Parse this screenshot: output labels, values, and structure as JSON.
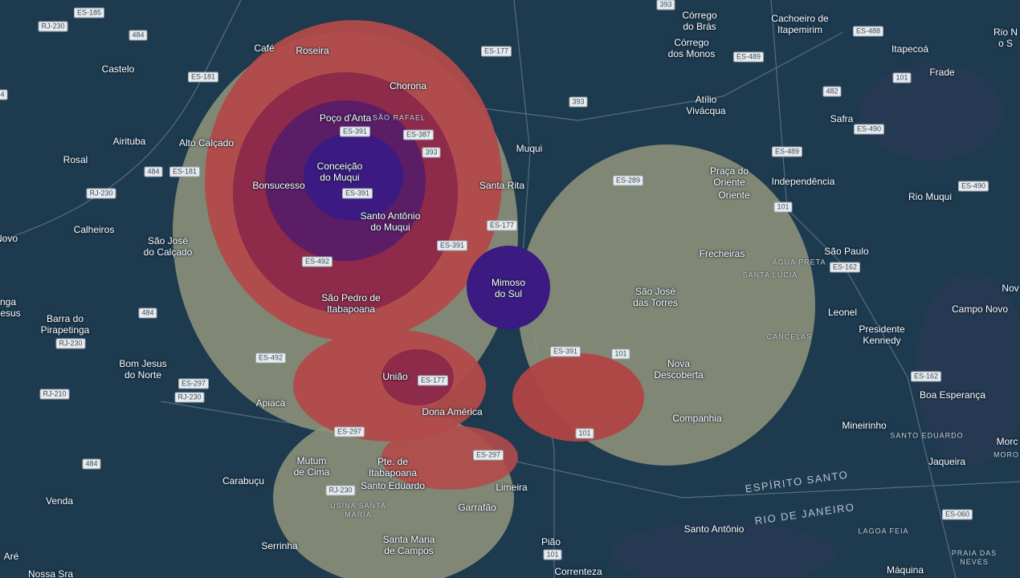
{
  "places": [
    "Café",
    "Roseira",
    "Chorona",
    "Poço d'Anta",
    "Alto Calçado",
    "Conceição\ndo Muqui",
    "Bonsucesso",
    "Santo Antônio\ndo Muqui",
    "Santa Rita",
    "Muqui",
    "Castelo",
    "Airituba",
    "Rosal",
    "Calheiros",
    "São José\ndo Calçado",
    "Novo",
    "nga\nJesus",
    "Barra do\nPirapetinga",
    "Bom Jesus\ndo Norte",
    "São Pedro de\nItabapoana",
    "Mimoso\ndo Sul",
    "União",
    "Dona América",
    "Apiacá",
    "Mutum\nde Cima",
    "Pte. de\nItabapoana",
    "Santo Eduardo",
    "Carabuçu",
    "Venda",
    "Limeira",
    "Garrafão",
    "Santa Maria\nde Campos",
    "Serrinha",
    "Aré",
    "Nossa Sra",
    "Pião",
    "Correnteza",
    "Córrego\ndo Brás",
    "Córrego\ndos Monos",
    "Cachoeiro de\nItapemirim",
    "Itapecoá",
    "Frade",
    "Rio N\no S",
    "Atílio\nVivácqua",
    "Safra",
    "Praça do\nOriente",
    "Oriente",
    "Independência",
    "Rio Muqui",
    "São Paulo",
    "Frecheiras",
    "São José\ndas Torres",
    "Leonel",
    "Campo Novo",
    "Nov",
    "Presidente\nKennedy",
    "Nova\nDescoberta",
    "Companhia",
    "Boa Esperança",
    "Mineirinho",
    "Jaqueira",
    "Morc",
    "Santo Antônio",
    "Máquina"
  ],
  "regions": [
    "SÃO RAFAEL",
    "ÁGUA PRETA",
    "SANTA LÚCIA",
    "CANCELAS",
    "SANTO EDUARDO",
    "MORO",
    "USINA SANTA\nMARIA",
    "LAGOA FEIA",
    "PRAIA DAS\nNEVES"
  ],
  "states": [
    "ESPÍRITO SANTO",
    "RIO DE JANEIRO"
  ],
  "roads": [
    "ES-185",
    "RJ-230",
    "484",
    "ES-181",
    "393",
    "ES-177",
    "ES-488",
    "ES-489",
    "101",
    "482",
    "393",
    "ES-387",
    "ES-391",
    "393",
    "ES-490",
    "ES-489",
    "484",
    "ES-181",
    "RJ-230",
    "ES-391",
    "ES-289",
    "101",
    "ES-490",
    "ES-177",
    "ES-391",
    "ES-492",
    "ES-162",
    "484",
    "RJ-230",
    "ES-391",
    "101",
    "ES-492",
    "ES-177",
    "ES-297",
    "RJ-210",
    "RJ-230",
    "ES-162",
    "ES-297",
    "101",
    "ES-297",
    "484",
    "RJ-230",
    "ES-060",
    "101",
    "4"
  ]
}
